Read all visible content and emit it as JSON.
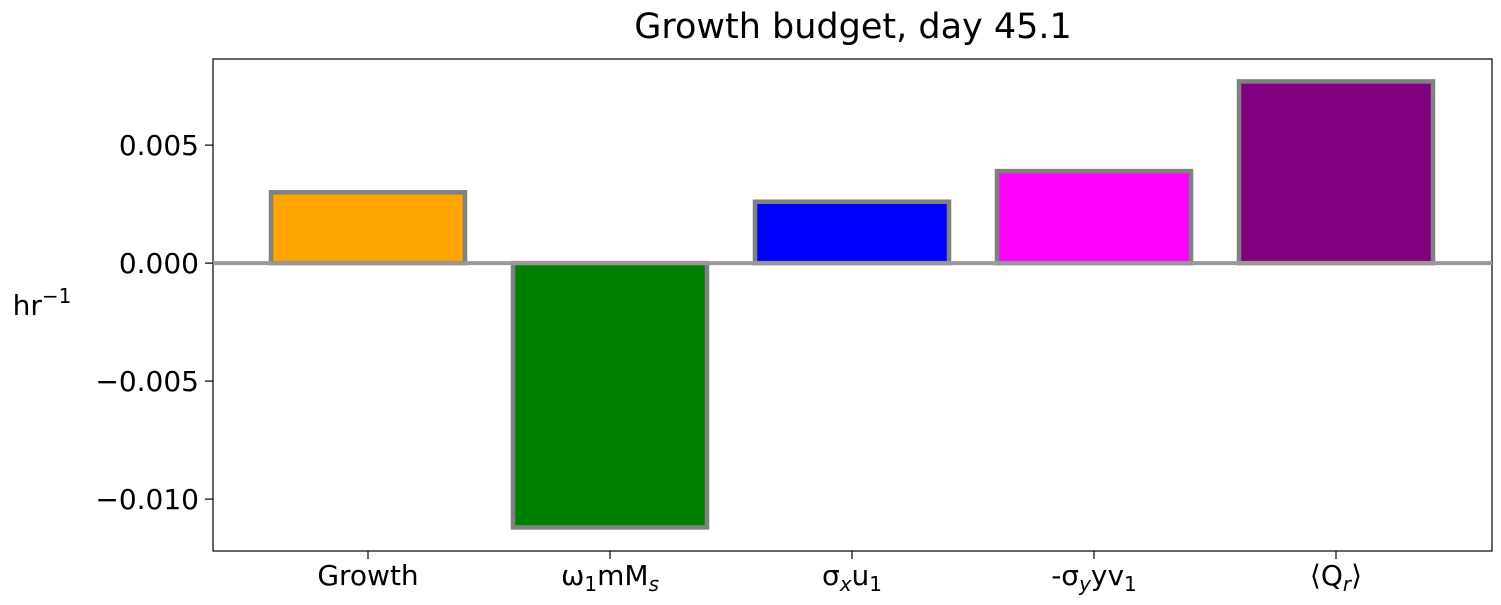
{
  "chart_data": {
    "type": "bar",
    "title": "Growth budget, day 45.1",
    "ylabel": "hr",
    "ylabel_exp": "−1",
    "categories": [
      {
        "base": "Growth",
        "sub": "",
        "post": "",
        "sub2": ""
      },
      {
        "base": "ω",
        "sub": "1",
        "post": "mM",
        "sub2": "s"
      },
      {
        "base": "σ",
        "sub": "x",
        "post": "u",
        "sub2": "1"
      },
      {
        "base": "-σ",
        "sub": "y",
        "post": "yv",
        "sub2": "1"
      },
      {
        "base": "⟨Q",
        "sub": "r",
        "post": "⟩",
        "sub2": ""
      }
    ],
    "values": [
      0.003,
      -0.0112,
      0.0026,
      0.0039,
      0.0077
    ],
    "colors": [
      "#ffa500",
      "#008000",
      "#0000ff",
      "#ff00ff",
      "#800080"
    ],
    "edge_color": "#808080",
    "zero_line_color": "#999999",
    "ylim": [
      -0.0122,
      0.00865
    ],
    "yticks": [
      0.005,
      0.0,
      -0.005,
      -0.01
    ],
    "ytick_labels": [
      "0.005",
      "0.000",
      "−0.005",
      "−0.010"
    ],
    "grid": false,
    "legend": "none"
  }
}
